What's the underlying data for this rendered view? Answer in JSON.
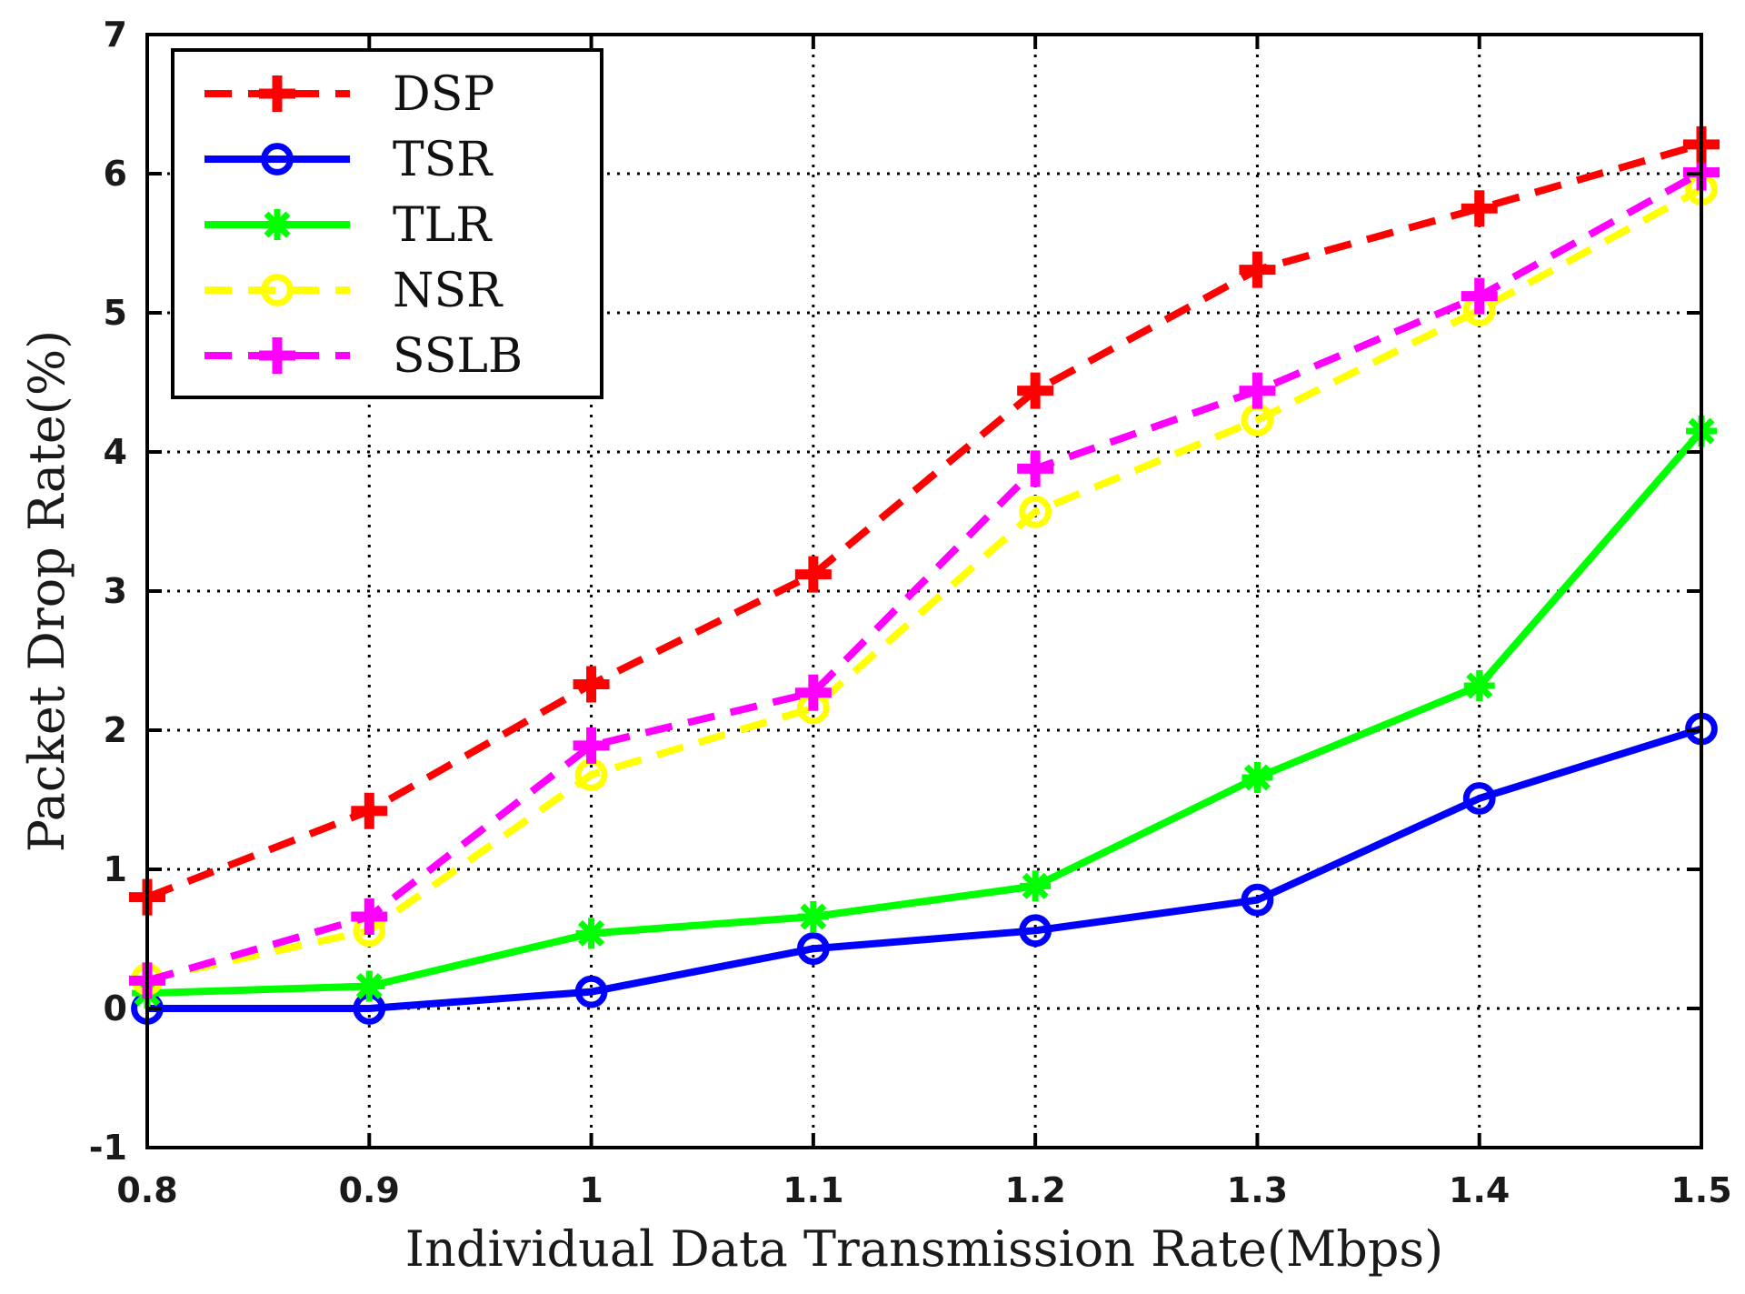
{
  "chart_data": {
    "type": "line",
    "title": "",
    "xlabel": "Individual Data Transmission Rate(Mbps)",
    "ylabel": "Packet Drop Rate(%)",
    "x": [
      0.8,
      0.9,
      1.0,
      1.1,
      1.2,
      1.3,
      1.4,
      1.5
    ],
    "xlim": [
      0.8,
      1.5
    ],
    "ylim": [
      -1,
      7
    ],
    "xticks": [
      "0.8",
      "0.9",
      "1",
      "1.1",
      "1.2",
      "1.3",
      "1.4",
      "1.5"
    ],
    "yticks": [
      "-1",
      "0",
      "1",
      "2",
      "3",
      "4",
      "5",
      "6",
      "7"
    ],
    "grid": true,
    "legend_position": "top-left",
    "series": [
      {
        "name": "DSP",
        "color": "#ff0000",
        "line_style": "dashed",
        "marker": "plus",
        "values": [
          0.8,
          1.42,
          2.33,
          3.12,
          4.44,
          5.31,
          5.75,
          6.21
        ]
      },
      {
        "name": "TSR",
        "color": "#0000ff",
        "line_style": "solid",
        "marker": "circle",
        "values": [
          0.0,
          0.0,
          0.12,
          0.43,
          0.56,
          0.78,
          1.51,
          2.01
        ]
      },
      {
        "name": "TLR",
        "color": "#00ff00",
        "line_style": "solid",
        "marker": "asterisk",
        "values": [
          0.11,
          0.16,
          0.54,
          0.66,
          0.88,
          1.66,
          2.32,
          4.15
        ]
      },
      {
        "name": "NSR",
        "color": "#ffff00",
        "line_style": "dashed",
        "marker": "circle",
        "values": [
          0.21,
          0.56,
          1.68,
          2.16,
          3.57,
          4.23,
          5.02,
          5.89
        ]
      },
      {
        "name": "SSLB",
        "color": "#ff00ff",
        "line_style": "dashed",
        "marker": "plus",
        "values": [
          0.2,
          0.66,
          1.89,
          2.27,
          3.88,
          4.44,
          5.12,
          6.01
        ]
      }
    ]
  }
}
